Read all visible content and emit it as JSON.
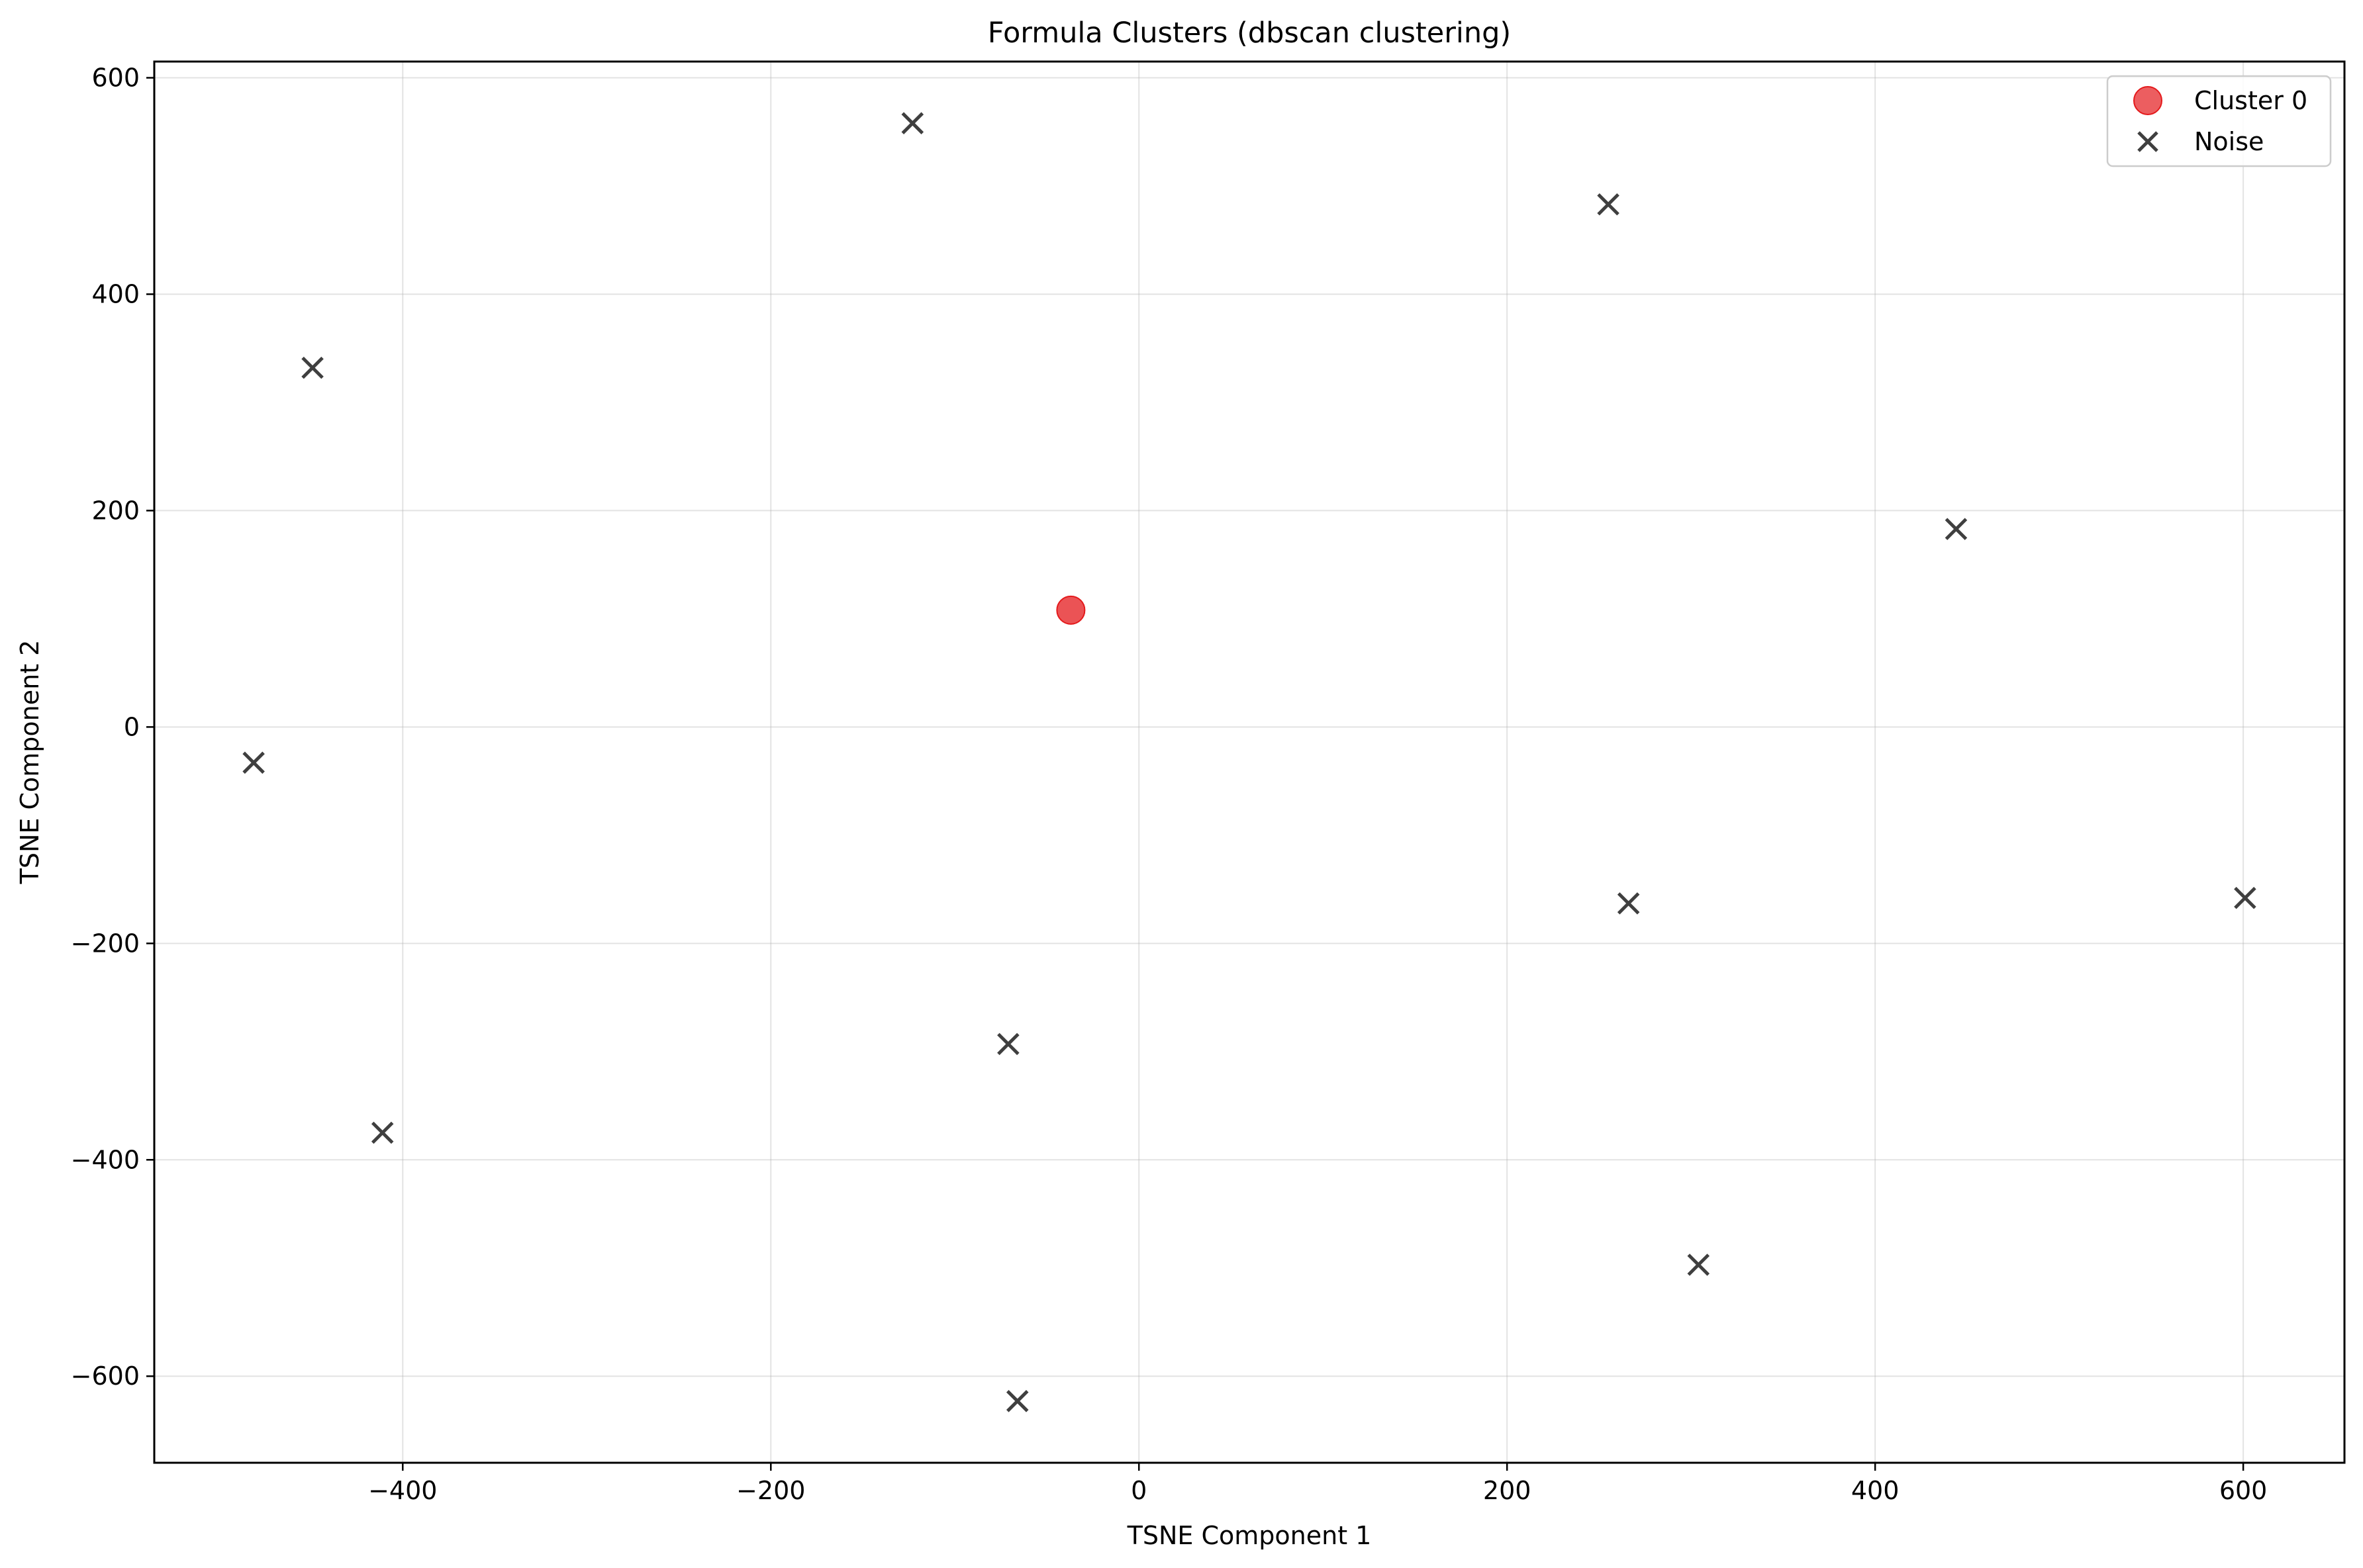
{
  "chart_data": {
    "type": "scatter",
    "title": "Formula Clusters (dbscan clustering)",
    "xlabel": "TSNE Component 1",
    "ylabel": "TSNE Component 2",
    "xlim": [
      -535,
      655
    ],
    "ylim": [
      -680,
      615
    ],
    "xticks": [
      -400,
      -200,
      0,
      200,
      400,
      600
    ],
    "yticks": [
      -600,
      -400,
      -200,
      0,
      200,
      400,
      600
    ],
    "grid": true,
    "legend": "top-right",
    "series": [
      {
        "name": "Cluster 0",
        "marker": "circle",
        "color": "#e41a1c",
        "points": [
          {
            "x": -37,
            "y": 108
          }
        ]
      },
      {
        "name": "Noise",
        "marker": "x",
        "color": "#3f3f3f",
        "points": [
          {
            "x": -123,
            "y": 558
          },
          {
            "x": 255,
            "y": 483
          },
          {
            "x": -449,
            "y": 332
          },
          {
            "x": 444,
            "y": 183
          },
          {
            "x": -481,
            "y": -33
          },
          {
            "x": 266,
            "y": -163
          },
          {
            "x": 601,
            "y": -158
          },
          {
            "x": -71,
            "y": -293
          },
          {
            "x": -411,
            "y": -375
          },
          {
            "x": 304,
            "y": -497
          },
          {
            "x": -66,
            "y": -623
          }
        ]
      }
    ]
  }
}
